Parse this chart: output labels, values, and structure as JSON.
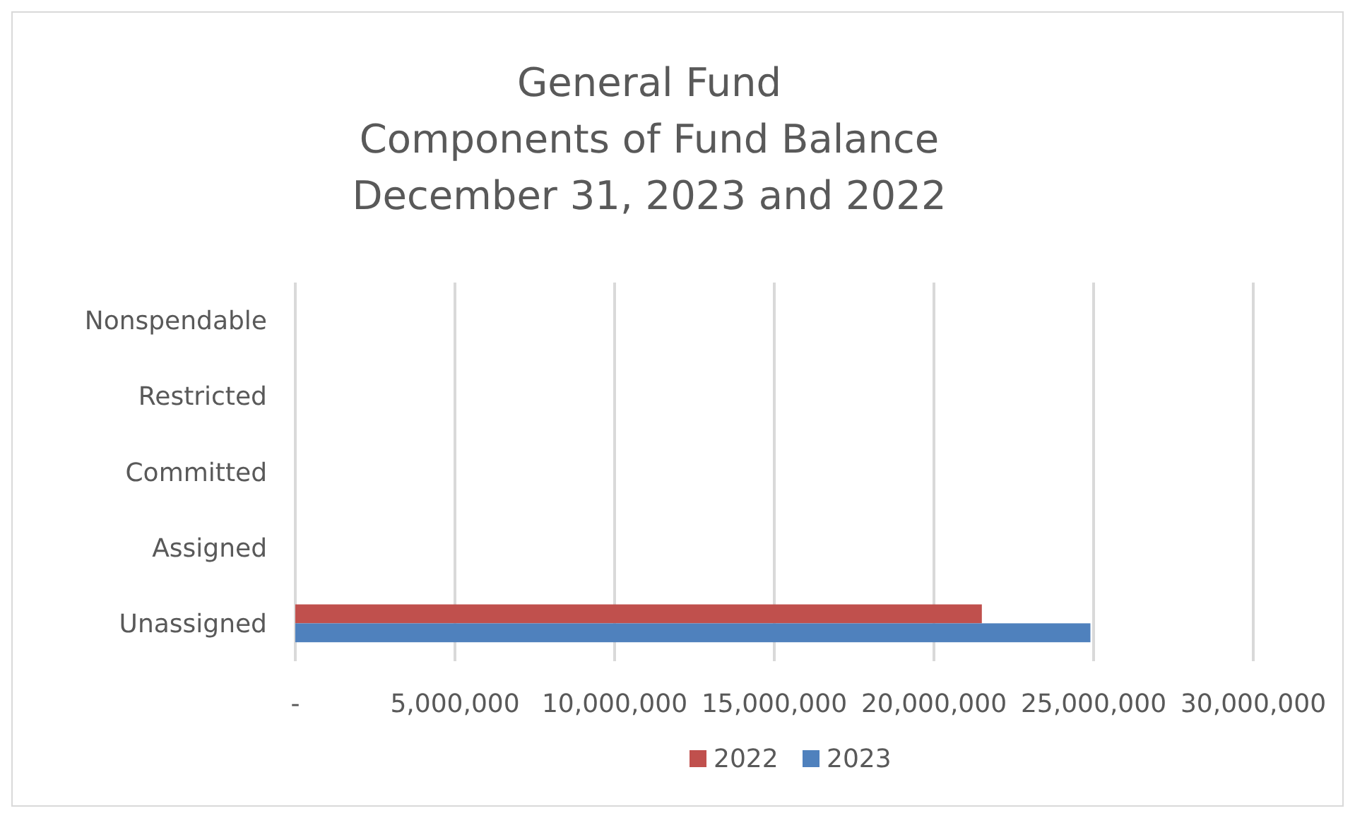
{
  "chart_data": {
    "type": "bar",
    "orientation": "horizontal",
    "title": "General Fund\nComponents of Fund Balance\nDecember 31, 2023 and 2022",
    "categories": [
      "Nonspendable",
      "Restricted",
      "Committed",
      "Assigned",
      "Unassigned"
    ],
    "series": [
      {
        "name": "2022",
        "color": "#c0504d",
        "values": [
          null,
          null,
          null,
          null,
          21500000
        ]
      },
      {
        "name": "2023",
        "color": "#4f81bd",
        "values": [
          null,
          null,
          null,
          null,
          24900000
        ]
      }
    ],
    "xlim": [
      0,
      30000000
    ],
    "xticks": [
      {
        "value": 0,
        "label": "-"
      },
      {
        "value": 5000000,
        "label": "5,000,000"
      },
      {
        "value": 10000000,
        "label": "10,000,000"
      },
      {
        "value": 15000000,
        "label": "15,000,000"
      },
      {
        "value": 20000000,
        "label": "20,000,000"
      },
      {
        "value": 25000000,
        "label": "25,000,000"
      },
      {
        "value": 30000000,
        "label": "30,000,000"
      }
    ],
    "grid": "x",
    "legend": "bottom"
  }
}
